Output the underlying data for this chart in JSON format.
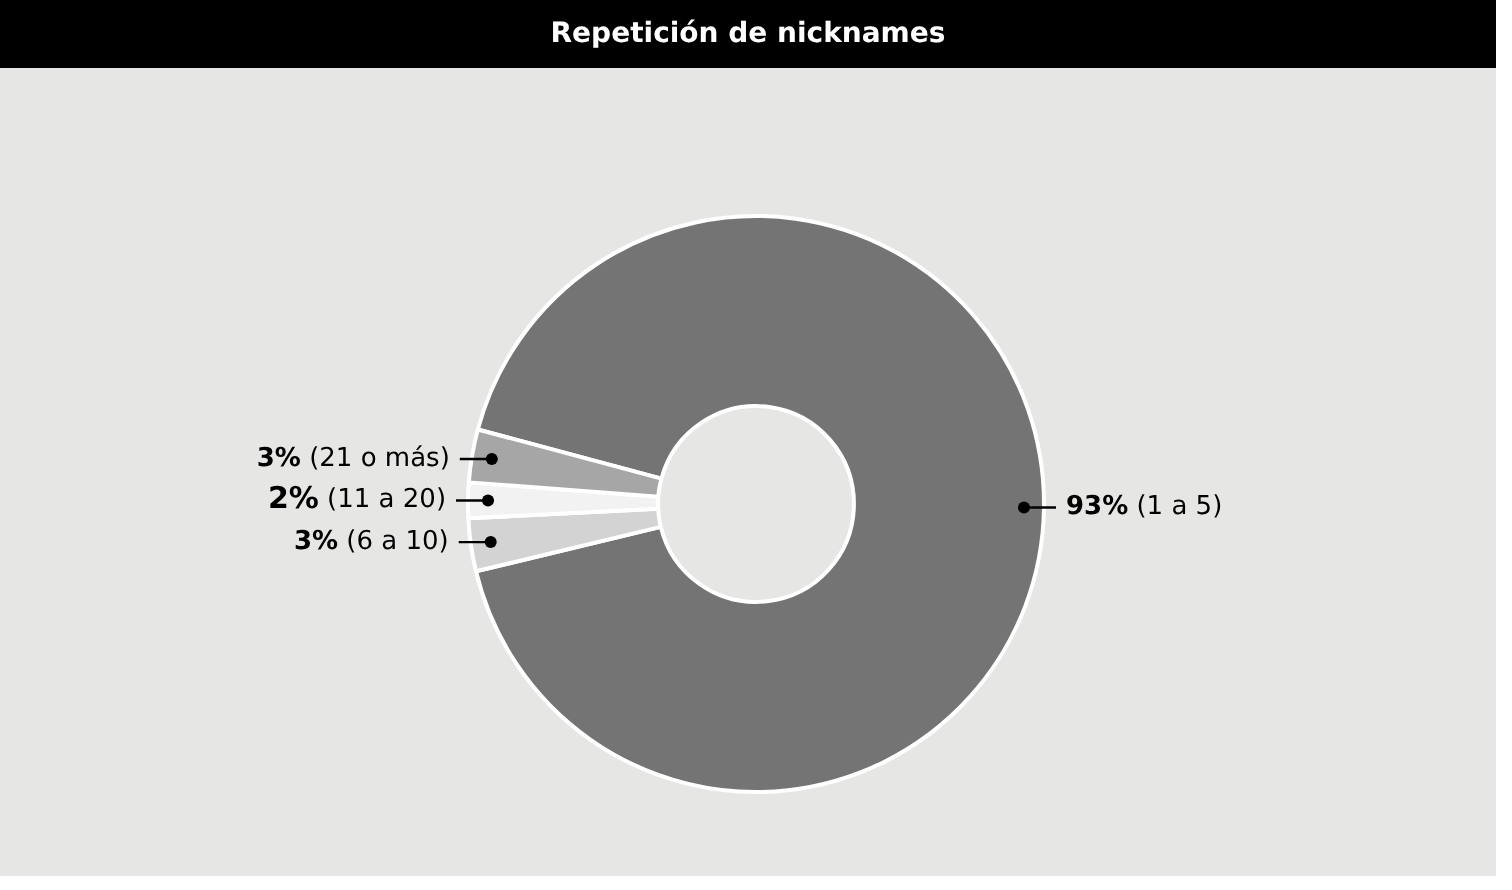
{
  "chart_data": {
    "type": "donut",
    "title": "Repetición de nicknames",
    "categories": [
      "(1 a 5)",
      "(6 a 10)",
      "(11 a 20)",
      "(21 o más)"
    ],
    "values": [
      93,
      3,
      2,
      3
    ],
    "value_labels": [
      "93%",
      "3%",
      "2%",
      "3%"
    ],
    "colors": [
      "#747474",
      "#d3d3d3",
      "#f2f2f2",
      "#a6a6a6"
    ],
    "legend": false
  }
}
